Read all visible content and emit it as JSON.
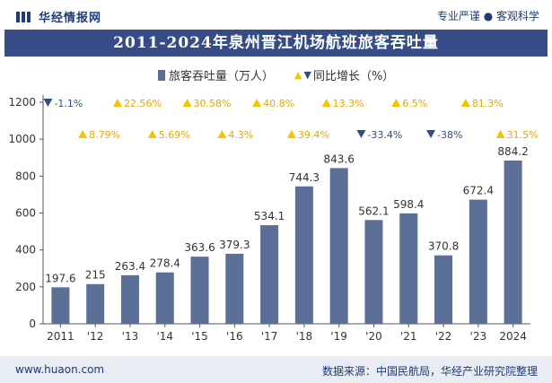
{
  "header": {
    "brand_name": "华经情报网",
    "tagline": "专业严谨 ● 客观科学"
  },
  "footer": {
    "site": "www.huaon.com",
    "source": "数据来源：中国民航局，华经产业研究院整理"
  },
  "colors": {
    "bar": "#5b6f97",
    "up": "#f5c400",
    "down": "#2f4f80",
    "title_bg": "#354c86",
    "text": "#333333"
  },
  "chart_data": {
    "type": "bar",
    "title": "2011-2024年泉州晋江机场航班旅客吞吐量",
    "categories": [
      "2011",
      "'12",
      "'13",
      "'14",
      "'15",
      "'16",
      "'17",
      "'18",
      "'19",
      "'20",
      "'21",
      "'22",
      "'23",
      "2024"
    ],
    "series": [
      {
        "name": "旅客吞吐量（万人）",
        "values": [
          197.6,
          215,
          263.4,
          278.4,
          363.6,
          379.3,
          534.1,
          744.3,
          843.6,
          562.1,
          598.4,
          370.8,
          672.4,
          884.2
        ],
        "labels": [
          "197.6",
          "215",
          "263.4",
          "278.4",
          "363.6",
          "379.3",
          "534.1",
          "744.3",
          "843.6",
          "562.1",
          "598.4",
          "370.8",
          "672.4",
          "884.2"
        ]
      },
      {
        "name": "同比增长（%）",
        "values": [
          -1.1,
          8.79,
          22.56,
          5.69,
          30.58,
          4.3,
          40.8,
          39.4,
          13.3,
          -33.4,
          6.5,
          -38,
          81.3,
          31.5
        ],
        "labels": [
          "-1.1%",
          "8.79%",
          "22.56%",
          "5.69%",
          "30.58%",
          "4.3%",
          "40.8%",
          "39.4%",
          "13.3%",
          "-33.4%",
          "6.5%",
          "-38%",
          "81.3%",
          "31.5%"
        ]
      }
    ],
    "ylim": [
      0,
      1200
    ],
    "yticks": [
      "0",
      "200",
      "400",
      "600",
      "800",
      "1000",
      "1200"
    ],
    "xlabel": "",
    "ylabel": "",
    "legend": "top-center",
    "grid": false
  },
  "legend_labels": {
    "bar": "旅客吞吐量（万人）",
    "line": "同比增长（%）"
  }
}
